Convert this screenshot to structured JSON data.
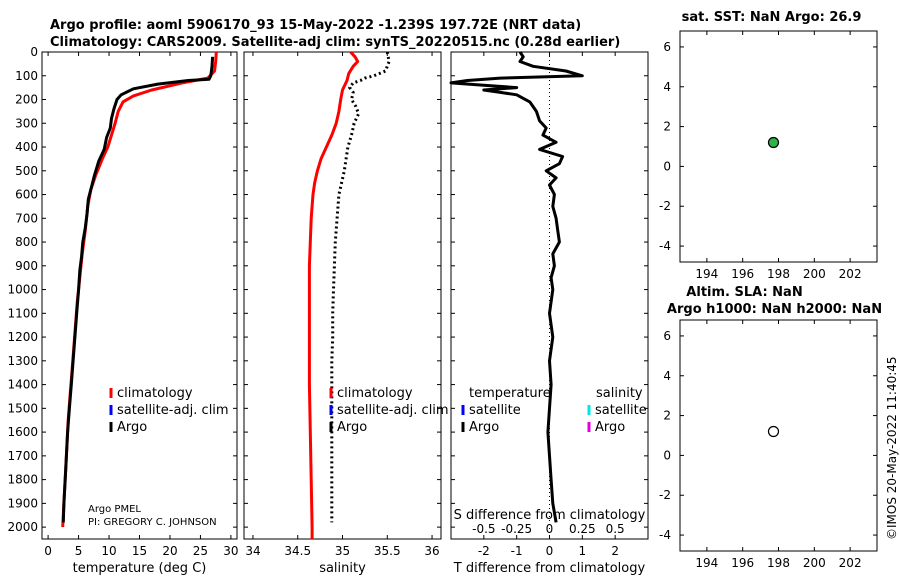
{
  "header": {
    "line1": "Argo profile: aoml 5906170_93 15-May-2022 -1.239S 197.72E (NRT data)",
    "line2": "Climatology: CARS2009. Satellite-adj clim: synTS_20220515.nc (0.28d earlier)"
  },
  "colors": {
    "climatology": "#ff0000",
    "satellite": "#0000ff",
    "argo": "#000000",
    "sat_salinity": "#00e5e5",
    "argo_salinity": "#e000e0",
    "sst_marker": "#2db34a"
  },
  "chart_data": [
    {
      "id": "temperature",
      "type": "line",
      "xlabel": "temperature (deg C)",
      "ylabel": "",
      "xlim": [
        -1,
        31
      ],
      "ylim": [
        2050,
        0
      ],
      "x_ticks": [
        0,
        5,
        10,
        15,
        20,
        25,
        30
      ],
      "y_ticks": [
        0,
        100,
        200,
        300,
        400,
        500,
        600,
        700,
        800,
        900,
        1000,
        1100,
        1200,
        1300,
        1400,
        1500,
        1600,
        1700,
        1800,
        1900,
        2000
      ],
      "legend": [
        "climatology",
        "satellite-adj. clim",
        "Argo"
      ],
      "annotation": [
        "Argo PMEL",
        "PI: GREGORY C. JOHNSON"
      ],
      "series": [
        {
          "name": "climatology",
          "color": "#ff0000",
          "dash": false,
          "points": [
            [
              27.6,
              0
            ],
            [
              27.5,
              40
            ],
            [
              27.3,
              80
            ],
            [
              26.2,
              110
            ],
            [
              22.0,
              130
            ],
            [
              17.0,
              160
            ],
            [
              14.0,
              185
            ],
            [
              12.3,
              210
            ],
            [
              11.5,
              250
            ],
            [
              11.0,
              300
            ],
            [
              10.4,
              350
            ],
            [
              9.8,
              400
            ],
            [
              8.9,
              450
            ],
            [
              7.8,
              520
            ],
            [
              7.0,
              580
            ],
            [
              6.5,
              650
            ],
            [
              6.1,
              750
            ],
            [
              5.6,
              850
            ],
            [
              5.2,
              950
            ],
            [
              4.8,
              1050
            ],
            [
              4.5,
              1150
            ],
            [
              4.2,
              1250
            ],
            [
              3.9,
              1350
            ],
            [
              3.6,
              1450
            ],
            [
              3.3,
              1550
            ],
            [
              3.1,
              1650
            ],
            [
              2.9,
              1750
            ],
            [
              2.7,
              1850
            ],
            [
              2.5,
              1950
            ],
            [
              2.4,
              2000
            ]
          ]
        },
        {
          "name": "Argo",
          "color": "#000000",
          "dash": false,
          "points": [
            [
              27.0,
              20
            ],
            [
              26.9,
              60
            ],
            [
              26.7,
              100
            ],
            [
              26.4,
              115
            ],
            [
              23.0,
              120
            ],
            [
              18.0,
              135
            ],
            [
              14.0,
              155
            ],
            [
              12.0,
              180
            ],
            [
              11.3,
              200
            ],
            [
              10.8,
              240
            ],
            [
              10.4,
              280
            ],
            [
              10.2,
              320
            ],
            [
              9.6,
              360
            ],
            [
              9.2,
              410
            ],
            [
              8.3,
              460
            ],
            [
              7.6,
              520
            ],
            [
              7.2,
              560
            ],
            [
              6.6,
              620
            ],
            [
              6.4,
              680
            ],
            [
              6.1,
              740
            ],
            [
              5.7,
              800
            ],
            [
              5.5,
              860
            ],
            [
              5.2,
              920
            ],
            [
              5.0,
              1000
            ],
            [
              4.7,
              1100
            ],
            [
              4.4,
              1200
            ],
            [
              4.1,
              1300
            ],
            [
              3.8,
              1400
            ],
            [
              3.5,
              1500
            ],
            [
              3.2,
              1600
            ],
            [
              3.0,
              1700
            ],
            [
              2.8,
              1800
            ],
            [
              2.6,
              1900
            ],
            [
              2.5,
              1980
            ]
          ]
        }
      ]
    },
    {
      "id": "salinity",
      "type": "line",
      "xlabel": "salinity",
      "xlim": [
        33.9,
        36.1
      ],
      "ylim": [
        2050,
        0
      ],
      "x_ticks": [
        34,
        34.5,
        35,
        35.5,
        36
      ],
      "legend": [
        "climatology",
        "satellite-adj. clim",
        "Argo"
      ],
      "series": [
        {
          "name": "climatology",
          "color": "#ff0000",
          "dash": false,
          "points": [
            [
              35.09,
              0
            ],
            [
              35.14,
              20
            ],
            [
              35.17,
              40
            ],
            [
              35.12,
              60
            ],
            [
              35.07,
              90
            ],
            [
              35.05,
              120
            ],
            [
              35.0,
              160
            ],
            [
              34.98,
              200
            ],
            [
              34.96,
              250
            ],
            [
              34.93,
              300
            ],
            [
              34.88,
              350
            ],
            [
              34.82,
              400
            ],
            [
              34.76,
              450
            ],
            [
              34.72,
              500
            ],
            [
              34.69,
              550
            ],
            [
              34.67,
              600
            ],
            [
              34.65,
              700
            ],
            [
              34.64,
              800
            ],
            [
              34.63,
              900
            ],
            [
              34.63,
              1000
            ],
            [
              34.63,
              1200
            ],
            [
              34.63,
              1400
            ],
            [
              34.64,
              1600
            ],
            [
              34.65,
              1800
            ],
            [
              34.66,
              2000
            ],
            [
              34.66,
              2050
            ]
          ]
        },
        {
          "name": "Argo",
          "color": "#000000",
          "dash": true,
          "points": [
            [
              35.5,
              0
            ],
            [
              35.52,
              40
            ],
            [
              35.48,
              80
            ],
            [
              35.35,
              100
            ],
            [
              35.25,
              110
            ],
            [
              35.2,
              120
            ],
            [
              35.12,
              130
            ],
            [
              35.08,
              150
            ],
            [
              35.12,
              170
            ],
            [
              35.1,
              200
            ],
            [
              35.15,
              230
            ],
            [
              35.18,
              260
            ],
            [
              35.13,
              300
            ],
            [
              35.1,
              350
            ],
            [
              35.06,
              400
            ],
            [
              35.04,
              450
            ],
            [
              35.02,
              500
            ],
            [
              34.99,
              550
            ],
            [
              34.96,
              600
            ],
            [
              34.94,
              700
            ],
            [
              34.92,
              800
            ],
            [
              34.91,
              900
            ],
            [
              34.9,
              1000
            ],
            [
              34.89,
              1100
            ],
            [
              34.89,
              1200
            ],
            [
              34.88,
              1300
            ],
            [
              34.88,
              1400
            ],
            [
              34.88,
              1500
            ],
            [
              34.88,
              1600
            ],
            [
              34.88,
              1700
            ],
            [
              34.88,
              1800
            ],
            [
              34.88,
              1900
            ],
            [
              34.88,
              1980
            ]
          ]
        }
      ]
    },
    {
      "id": "difference",
      "type": "line",
      "xlabel": "T difference from climatology",
      "xlabel2": "S difference from climatology",
      "xlim": [
        -3,
        3
      ],
      "ylim": [
        2050,
        0
      ],
      "x_ticks": [
        -2,
        -1,
        0,
        1,
        2
      ],
      "x_ticks2": [
        "-0.5",
        "-0.25",
        "0",
        "0.25",
        "0.5"
      ],
      "x_ticks2_values": [
        -2,
        -1,
        0,
        1,
        2
      ],
      "legend_titles": [
        "temperature",
        "salinity"
      ],
      "legend_left": [
        "satellite",
        "Argo"
      ],
      "legend_right": [
        "satellite",
        "Argo"
      ],
      "series": [
        {
          "name": "T difference Argo",
          "color": "#000000",
          "dash": false,
          "points": [
            [
              -0.9,
              0
            ],
            [
              -0.8,
              20
            ],
            [
              -0.9,
              40
            ],
            [
              -0.5,
              60
            ],
            [
              0.5,
              80
            ],
            [
              1.0,
              100
            ],
            [
              -1.5,
              110
            ],
            [
              -2.5,
              120
            ],
            [
              -3.0,
              130
            ],
            [
              -2.0,
              140
            ],
            [
              -1.0,
              150
            ],
            [
              -2.0,
              160
            ],
            [
              -1.5,
              170
            ],
            [
              -1.0,
              180
            ],
            [
              -0.6,
              210
            ],
            [
              -0.4,
              250
            ],
            [
              -0.3,
              290
            ],
            [
              -0.1,
              320
            ],
            [
              -0.2,
              350
            ],
            [
              0.2,
              380
            ],
            [
              -0.3,
              410
            ],
            [
              0.4,
              440
            ],
            [
              0.3,
              470
            ],
            [
              -0.1,
              500
            ],
            [
              0.2,
              530
            ],
            [
              0.0,
              560
            ],
            [
              0.15,
              600
            ],
            [
              0.1,
              650
            ],
            [
              0.2,
              700
            ],
            [
              0.25,
              750
            ],
            [
              0.3,
              800
            ],
            [
              0.1,
              850
            ],
            [
              0.15,
              900
            ],
            [
              0.05,
              950
            ],
            [
              0.1,
              1000
            ],
            [
              0.0,
              1100
            ],
            [
              0.1,
              1200
            ],
            [
              0.0,
              1300
            ],
            [
              0.05,
              1400
            ],
            [
              0.0,
              1500
            ],
            [
              -0.05,
              1600
            ],
            [
              0.0,
              1700
            ],
            [
              0.05,
              1800
            ],
            [
              0.1,
              1900
            ],
            [
              0.2,
              1980
            ]
          ]
        }
      ]
    },
    {
      "id": "sst",
      "type": "scatter",
      "title": "sat. SST: NaN Argo: 26.9",
      "xlim": [
        192.5,
        203.5
      ],
      "ylim": [
        -4.8,
        6.8
      ],
      "x_ticks": [
        194,
        196,
        198,
        200,
        202
      ],
      "y_ticks": [
        -4,
        -2,
        0,
        2,
        4,
        6
      ],
      "points": [
        {
          "x": 197.72,
          "y": 1.2,
          "fill": "#2db34a"
        }
      ]
    },
    {
      "id": "sla",
      "type": "scatter",
      "title": "Altim. SLA: NaN",
      "title2": "Argo h1000: NaN h2000: NaN",
      "xlim": [
        192.5,
        203.5
      ],
      "ylim": [
        -4.8,
        6.8
      ],
      "x_ticks": [
        194,
        196,
        198,
        200,
        202
      ],
      "y_ticks": [
        -4,
        -2,
        0,
        2,
        4,
        6
      ],
      "points": [
        {
          "x": 197.72,
          "y": 1.2,
          "fill": "#ffffff"
        }
      ]
    }
  ],
  "stamp": "©IMOS 20-May-2022 11:40:45"
}
